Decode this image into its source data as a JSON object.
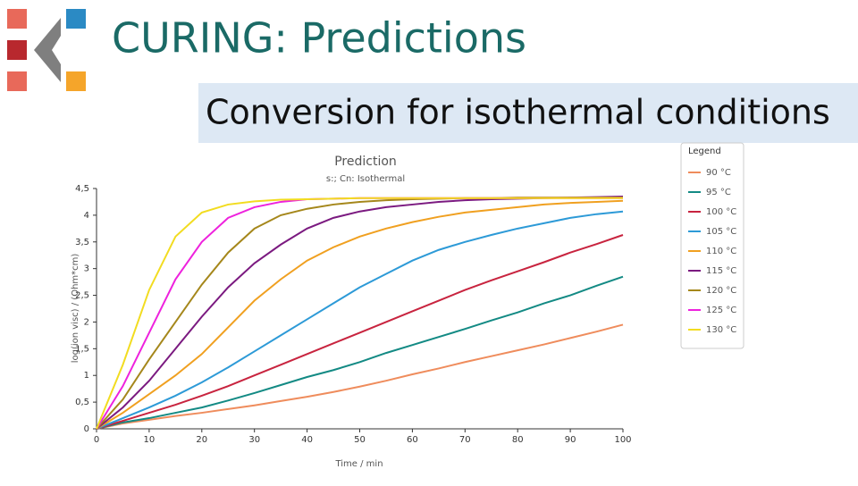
{
  "header": {
    "title": "CURING: Predictions",
    "subtitle": "Conversion for isothermal conditions"
  },
  "chart_data": {
    "type": "line",
    "title": "Prediction",
    "subtitle": "s:; Cn: Isothermal",
    "x_label": "Time / min",
    "y_label": "log(ion visc) / (Ohm*cm)",
    "legend_title": "Legend",
    "legend": "right",
    "grid": false,
    "x": [
      0,
      5,
      10,
      15,
      20,
      25,
      30,
      35,
      40,
      45,
      50,
      55,
      60,
      65,
      70,
      75,
      80,
      85,
      90,
      95,
      100
    ],
    "xlim": [
      0,
      100
    ],
    "xticks": [
      0,
      10,
      20,
      30,
      40,
      50,
      60,
      70,
      80,
      90,
      100
    ],
    "ylim": [
      0,
      4.5
    ],
    "yticks": [
      0,
      {
        "value": 0.5,
        "label": "0,5"
      },
      1,
      {
        "value": 1.5,
        "label": "1,5"
      },
      2,
      {
        "value": 2.5,
        "label": "2,5"
      },
      3,
      {
        "value": 3.5,
        "label": "3,5"
      },
      4,
      {
        "value": 4.5,
        "label": "4,5"
      }
    ],
    "series": [
      {
        "name": "90 °C",
        "color": "#ef8c5c",
        "values": [
          0,
          0.1,
          0.17,
          0.24,
          0.3,
          0.37,
          0.44,
          0.52,
          0.6,
          0.69,
          0.79,
          0.9,
          1.02,
          1.13,
          1.25,
          1.36,
          1.47,
          1.58,
          1.7,
          1.82,
          1.95
        ]
      },
      {
        "name": "95 °C",
        "color": "#138a84",
        "values": [
          0,
          0.12,
          0.2,
          0.3,
          0.4,
          0.53,
          0.67,
          0.82,
          0.97,
          1.1,
          1.25,
          1.42,
          1.57,
          1.72,
          1.87,
          2.03,
          2.18,
          2.35,
          2.5,
          2.68,
          2.85
        ]
      },
      {
        "name": "100 °C",
        "color": "#c8243f",
        "values": [
          0,
          0.15,
          0.3,
          0.45,
          0.62,
          0.8,
          1.0,
          1.2,
          1.4,
          1.6,
          1.8,
          2.0,
          2.2,
          2.4,
          2.6,
          2.78,
          2.95,
          3.12,
          3.3,
          3.46,
          3.63
        ]
      },
      {
        "name": "105 °C",
        "color": "#2d9ad7",
        "values": [
          0,
          0.2,
          0.4,
          0.62,
          0.87,
          1.15,
          1.45,
          1.75,
          2.05,
          2.35,
          2.65,
          2.9,
          3.15,
          3.35,
          3.5,
          3.63,
          3.75,
          3.85,
          3.95,
          4.02,
          4.07
        ]
      },
      {
        "name": "110 °C",
        "color": "#f0a020",
        "values": [
          0,
          0.3,
          0.65,
          1.0,
          1.4,
          1.9,
          2.4,
          2.8,
          3.15,
          3.4,
          3.6,
          3.75,
          3.87,
          3.97,
          4.05,
          4.1,
          4.15,
          4.2,
          4.23,
          4.25,
          4.27
        ]
      },
      {
        "name": "115 °C",
        "color": "#7b1a80",
        "values": [
          0,
          0.4,
          0.9,
          1.5,
          2.1,
          2.65,
          3.1,
          3.45,
          3.75,
          3.95,
          4.07,
          4.15,
          4.2,
          4.25,
          4.28,
          4.3,
          4.31,
          4.32,
          4.33,
          4.34,
          4.35
        ]
      },
      {
        "name": "120 °C",
        "color": "#a5871b",
        "values": [
          0,
          0.55,
          1.3,
          2.0,
          2.7,
          3.3,
          3.75,
          4.0,
          4.12,
          4.2,
          4.25,
          4.28,
          4.3,
          4.31,
          4.32,
          4.32,
          4.33,
          4.33,
          4.33,
          4.33,
          4.33
        ]
      },
      {
        "name": "125 °C",
        "color": "#ee22dd",
        "values": [
          0,
          0.8,
          1.8,
          2.8,
          3.5,
          3.95,
          4.15,
          4.25,
          4.3,
          4.31,
          4.32,
          4.32,
          4.32,
          4.32,
          4.32,
          4.32,
          4.32,
          4.32,
          4.32,
          4.32,
          4.32
        ]
      },
      {
        "name": "130 °C",
        "color": "#f2dc20",
        "values": [
          0,
          1.2,
          2.6,
          3.6,
          4.05,
          4.2,
          4.26,
          4.29,
          4.3,
          4.31,
          4.32,
          4.32,
          4.32,
          4.32,
          4.32,
          4.32,
          4.32,
          4.32,
          4.32,
          4.32,
          4.32
        ]
      }
    ]
  }
}
